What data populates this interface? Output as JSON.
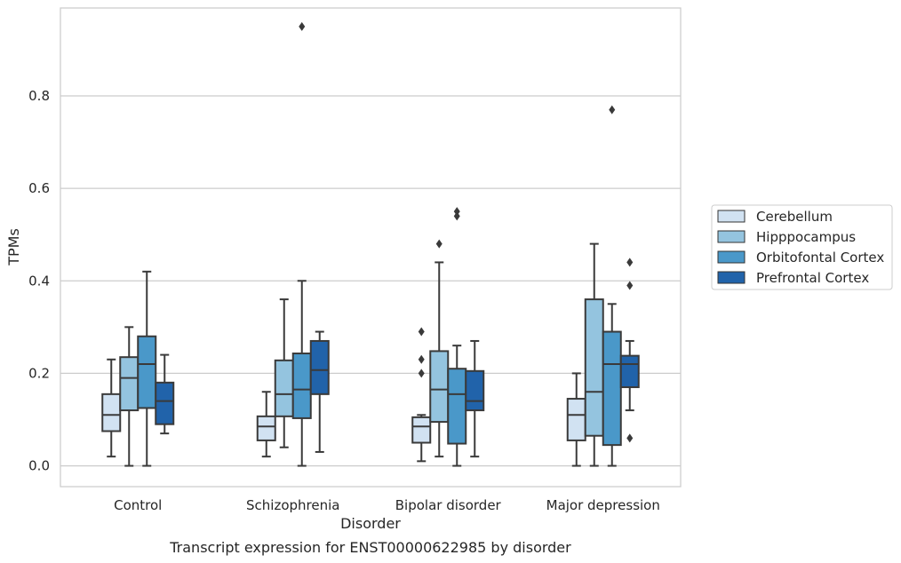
{
  "chart_data": {
    "type": "box",
    "caption": "Transcript expression for ENST00000622985 by disorder",
    "xlabel": "Disorder",
    "ylabel": "TPMs",
    "ylim": [
      -0.045,
      0.99
    ],
    "yticks": [
      "0.0",
      "0.2",
      "0.4",
      "0.6",
      "0.8"
    ],
    "grid": "horizontal",
    "legend_position": "right",
    "categories": [
      "Control",
      "Schizophrenia",
      "Bipolar disorder",
      "Major depression"
    ],
    "series": [
      {
        "name": "Cerebellum",
        "color": "#d1e2f2",
        "boxes": [
          {
            "whislo": 0.02,
            "q1": 0.075,
            "med": 0.11,
            "q3": 0.155,
            "whishi": 0.23,
            "fliers": []
          },
          {
            "whislo": 0.02,
            "q1": 0.055,
            "med": 0.085,
            "q3": 0.107,
            "whishi": 0.16,
            "fliers": []
          },
          {
            "whislo": 0.01,
            "q1": 0.05,
            "med": 0.085,
            "q3": 0.105,
            "whishi": 0.11,
            "fliers": [
              0.2,
              0.23,
              0.29
            ]
          },
          {
            "whislo": 0.0,
            "q1": 0.055,
            "med": 0.11,
            "q3": 0.145,
            "whishi": 0.2,
            "fliers": []
          }
        ]
      },
      {
        "name": "Hipppocampus",
        "color": "#94c4df",
        "boxes": [
          {
            "whislo": 0.0,
            "q1": 0.12,
            "med": 0.19,
            "q3": 0.235,
            "whishi": 0.3,
            "fliers": []
          },
          {
            "whislo": 0.04,
            "q1": 0.107,
            "med": 0.155,
            "q3": 0.228,
            "whishi": 0.36,
            "fliers": []
          },
          {
            "whislo": 0.02,
            "q1": 0.095,
            "med": 0.165,
            "q3": 0.248,
            "whishi": 0.44,
            "fliers": [
              0.48
            ]
          },
          {
            "whislo": 0.0,
            "q1": 0.065,
            "med": 0.16,
            "q3": 0.36,
            "whishi": 0.48,
            "fliers": []
          }
        ]
      },
      {
        "name": "Orbitofontal Cortex",
        "color": "#4a98c9",
        "boxes": [
          {
            "whislo": 0.0,
            "q1": 0.125,
            "med": 0.22,
            "q3": 0.28,
            "whishi": 0.42,
            "fliers": []
          },
          {
            "whislo": 0.0,
            "q1": 0.103,
            "med": 0.165,
            "q3": 0.243,
            "whishi": 0.4,
            "fliers": [
              0.95
            ]
          },
          {
            "whislo": 0.0,
            "q1": 0.048,
            "med": 0.155,
            "q3": 0.21,
            "whishi": 0.26,
            "fliers": [
              0.54,
              0.55
            ]
          },
          {
            "whislo": 0.0,
            "q1": 0.045,
            "med": 0.22,
            "q3": 0.29,
            "whishi": 0.35,
            "fliers": [
              0.77
            ]
          }
        ]
      },
      {
        "name": "Prefrontal Cortex",
        "color": "#2163aa",
        "boxes": [
          {
            "whislo": 0.07,
            "q1": 0.09,
            "med": 0.14,
            "q3": 0.18,
            "whishi": 0.24,
            "fliers": []
          },
          {
            "whislo": 0.03,
            "q1": 0.155,
            "med": 0.207,
            "q3": 0.27,
            "whishi": 0.29,
            "fliers": []
          },
          {
            "whislo": 0.02,
            "q1": 0.12,
            "med": 0.14,
            "q3": 0.205,
            "whishi": 0.27,
            "fliers": []
          },
          {
            "whislo": 0.12,
            "q1": 0.17,
            "med": 0.22,
            "q3": 0.238,
            "whishi": 0.27,
            "fliers": [
              0.06,
              0.39,
              0.44
            ]
          }
        ]
      }
    ]
  }
}
